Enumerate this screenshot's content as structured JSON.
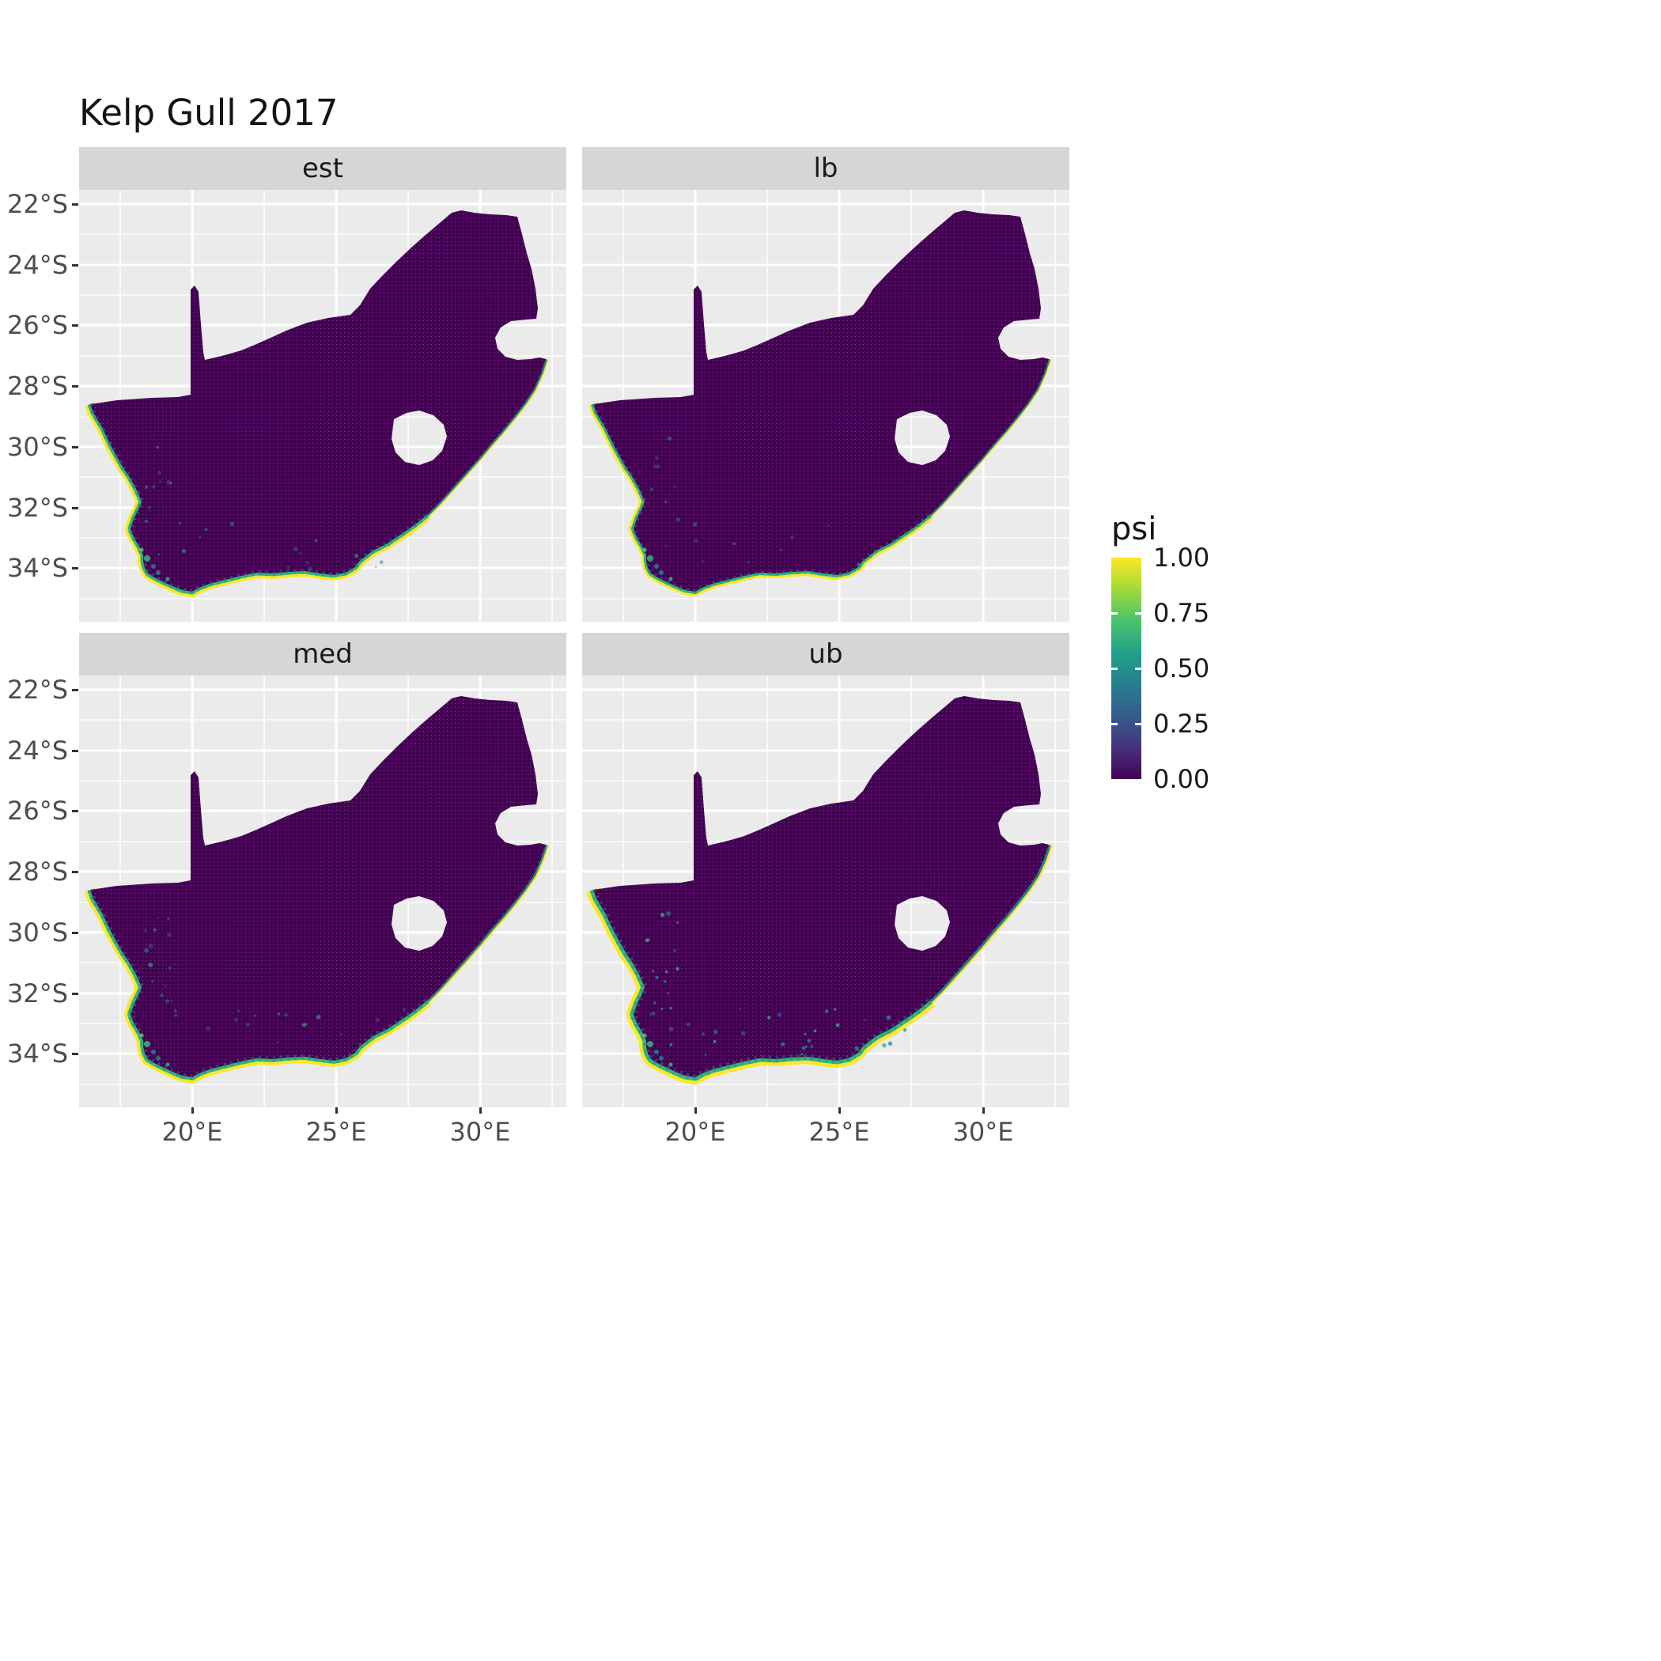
{
  "title": "Kelp Gull 2017",
  "facets": [
    {
      "key": "est",
      "label": "est",
      "rim_scale": 1.0,
      "speckle_opacity": 0.55,
      "speckle_count": 26
    },
    {
      "key": "lb",
      "label": "lb",
      "rim_scale": 0.88,
      "speckle_opacity": 0.42,
      "speckle_count": 18
    },
    {
      "key": "med",
      "label": "med",
      "rim_scale": 1.12,
      "speckle_opacity": 0.6,
      "speckle_count": 30
    },
    {
      "key": "ub",
      "label": "ub",
      "rim_scale": 1.3,
      "speckle_opacity": 0.78,
      "speckle_count": 46
    }
  ],
  "axes": {
    "y_labels": [
      "22°S",
      "24°S",
      "26°S",
      "28°S",
      "30°S",
      "32°S",
      "34°S"
    ],
    "x_labels": [
      "20°E",
      "25°E",
      "30°E"
    ]
  },
  "legend": {
    "title": "psi",
    "labels": [
      "1.00",
      "0.75",
      "0.50",
      "0.25",
      "0.00"
    ],
    "values": [
      1,
      0.75,
      0.5,
      0.25,
      0
    ]
  },
  "colors": {
    "land": "#440154",
    "yellow": "#FDE725",
    "green": "#35B779",
    "teal": "#26828E",
    "blue": "#31688E",
    "panel_bg": "#EBEBEB",
    "strip_bg": "#D6D6D6",
    "grid": "#FFFFFF",
    "axis_text": "#4D4D4D",
    "text": "#1A1A1A",
    "viridis_stops": [
      "#440154",
      "#46327E",
      "#365C8D",
      "#277F8E",
      "#1FA187",
      "#4AC16D",
      "#A0DA39",
      "#FDE725"
    ],
    "speckle_palette": [
      "#21918C",
      "#35B779",
      "#31688E",
      "#3B528B"
    ]
  },
  "chart_data": {
    "type": "heatmap",
    "title": "Kelp Gull 2017",
    "facet_variable_levels": [
      "est",
      "lb",
      "med",
      "ub"
    ],
    "facet_layout": "2x2 grid (est, lb / med, ub)",
    "value_variable": "psi",
    "value_range": [
      0,
      1
    ],
    "legend_breaks": [
      0.0,
      0.25,
      0.5,
      0.75,
      1.0
    ],
    "legend_labels": [
      "0.00",
      "0.25",
      "0.50",
      "0.75",
      "1.00"
    ],
    "palette": "viridis",
    "legend_position": "right",
    "grid": true,
    "x": {
      "tick_labels": [
        "20°E",
        "25°E",
        "30°E"
      ],
      "ticks_deg_E": [
        20,
        25,
        30
      ],
      "range_deg_E": [
        16.1,
        33.0
      ]
    },
    "y": {
      "tick_labels": [
        "22°S",
        "24°S",
        "26°S",
        "28°S",
        "30°S",
        "32°S",
        "34°S"
      ],
      "ticks_deg_S": [
        22,
        24,
        26,
        28,
        30,
        32,
        34
      ],
      "range_deg_S": [
        21.5,
        35.8
      ]
    },
    "region": "Raster grid over South Africa; Lesotho and Eswatini appear as holes with panel background showing through",
    "spatial_pattern": "Interior cells are ~0.00 (dark purple #440154) in all four facets. High psi values (0.5–1.0, teal to yellow) form a narrow fringe along the west coast from ~28.5°S southward, around the Cape and along the whole south coast, thinning to a teal line up the east coast to ~27°S. The fringe is weakest in lb, intermediate in est and med, and widest/brightest in ub, with scattered teal speckles just inland of the southern coast."
  }
}
